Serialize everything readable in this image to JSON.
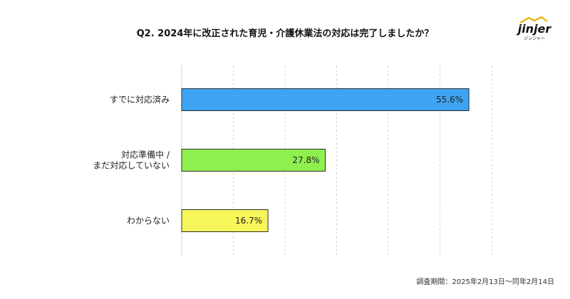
{
  "title": "Q2. 2024年に改正された育児・介護休業法の対応は完了しましたか？",
  "logo": {
    "text": "jinjer",
    "subtext": "ジンジャー"
  },
  "footnote": "調査期間：2025年2月13日〜同年2月14日",
  "chart_data": {
    "type": "bar",
    "orientation": "horizontal",
    "categories": [
      [
        "すでに対応済み"
      ],
      [
        "対応準備中 /",
        "まだ対応していない"
      ],
      [
        "わからない"
      ]
    ],
    "values": [
      55.6,
      27.8,
      16.7
    ],
    "value_labels": [
      "55.6%",
      "27.8%",
      "16.7%"
    ],
    "colors": [
      "#3ea3f2",
      "#8fef4f",
      "#f6f55a"
    ],
    "xlim": [
      0,
      60
    ],
    "grid": true
  }
}
